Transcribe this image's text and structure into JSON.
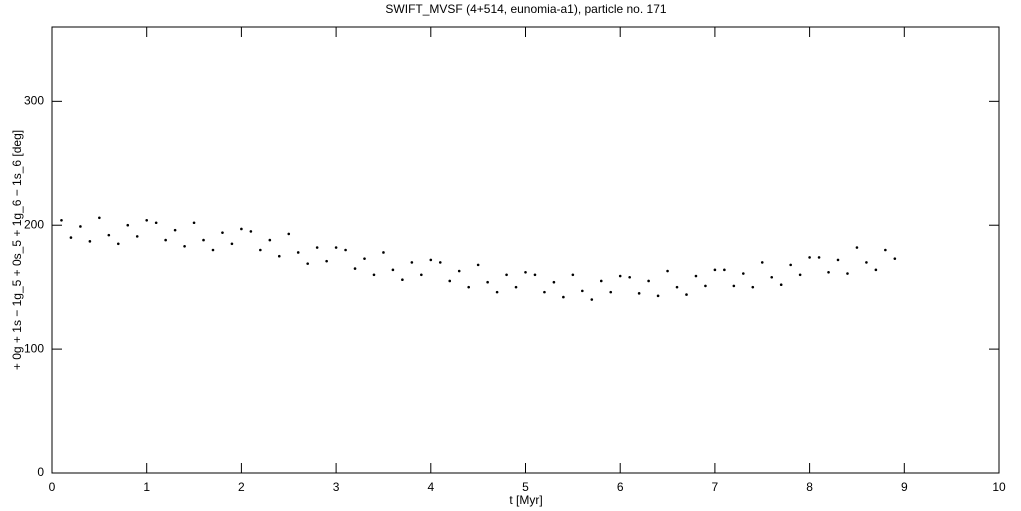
{
  "chart_data": {
    "type": "scatter",
    "title": "SWIFT_MVSF (4+514, eunomia-a1), particle no. 171",
    "x_label": "t [Myr]",
    "y_label": "+ 0g + 1s − 1g_5 + 0s_5 + 1g_6 − 1s_6 [deg]",
    "color": "#000000",
    "xlim": [
      0,
      10
    ],
    "ylim": [
      0,
      360
    ],
    "xticks": [
      0,
      1,
      2,
      3,
      4,
      5,
      6,
      7,
      8,
      9,
      10
    ],
    "yticks": [
      0,
      100,
      200,
      300
    ],
    "grid": false,
    "x": [
      0.1,
      0.2,
      0.3,
      0.4,
      0.5,
      0.6,
      0.7,
      0.8,
      0.9,
      1.0,
      1.1,
      1.2,
      1.3,
      1.4,
      1.5,
      1.6,
      1.7,
      1.8,
      1.9,
      2.0,
      2.1,
      2.2,
      2.3,
      2.4,
      2.5,
      2.6,
      2.7,
      2.8,
      2.9,
      3.0,
      3.1,
      3.2,
      3.3,
      3.4,
      3.5,
      3.6,
      3.7,
      3.8,
      3.9,
      4.0,
      4.1,
      4.2,
      4.3,
      4.4,
      4.5,
      4.6,
      4.7,
      4.8,
      4.9,
      5.0,
      5.1,
      5.2,
      5.3,
      5.4,
      5.5,
      5.6,
      5.7,
      5.8,
      5.9,
      6.0,
      6.1,
      6.2,
      6.3,
      6.4,
      6.5,
      6.6,
      6.7,
      6.8,
      6.9,
      7.0,
      7.1,
      7.2,
      7.3,
      7.4,
      7.5,
      7.6,
      7.7,
      7.8,
      7.9,
      8.0,
      8.1,
      8.2,
      8.3,
      8.4,
      8.5,
      8.6,
      8.7,
      8.8,
      8.9
    ],
    "values": [
      204,
      190,
      199,
      187,
      206,
      192,
      185,
      200,
      191,
      204,
      202,
      188,
      196,
      183,
      202,
      188,
      180,
      194,
      185,
      197,
      195,
      180,
      188,
      175,
      193,
      178,
      169,
      182,
      171,
      182,
      180,
      165,
      173,
      160,
      178,
      164,
      156,
      170,
      160,
      172,
      170,
      155,
      163,
      150,
      168,
      154,
      146,
      160,
      150,
      162,
      160,
      146,
      154,
      142,
      160,
      147,
      140,
      155,
      146,
      159,
      158,
      145,
      155,
      143,
      163,
      150,
      144,
      159,
      151,
      164,
      164,
      151,
      161,
      150,
      170,
      158,
      152,
      168,
      160,
      174,
      174,
      162,
      172,
      161,
      182,
      170,
      164,
      180,
      173
    ]
  }
}
